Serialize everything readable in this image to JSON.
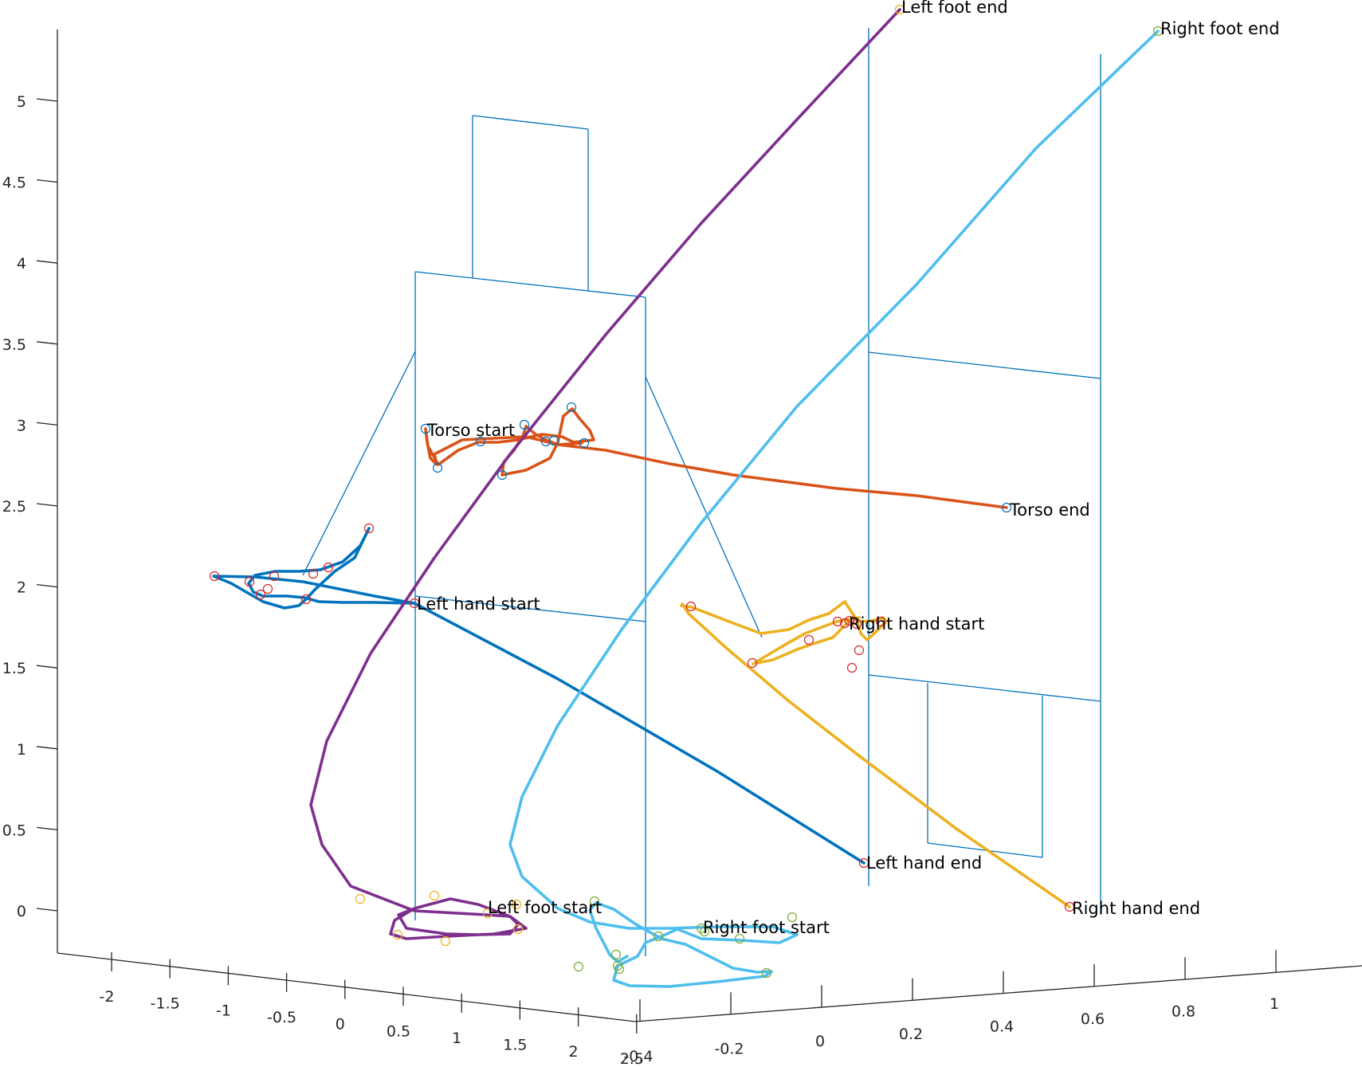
{
  "chart_data": {
    "type": "line3d",
    "title": "",
    "view": "3-D trajectory plot of body keypoints (MATLAB default view)",
    "axes": {
      "x": {
        "ticks": [
          "-2",
          "-1.5",
          "-1",
          "-0.5",
          "0",
          "0.5",
          "1",
          "1.5",
          "2",
          "2.5"
        ],
        "lim": [
          -2.3,
          2.6
        ]
      },
      "y": {
        "ticks": [
          "-0.4",
          "-0.2",
          "0",
          "0.2",
          "0.4",
          "0.6",
          "0.8",
          "1"
        ],
        "lim": [
          -0.45,
          1.05
        ]
      },
      "z": {
        "ticks": [
          "0",
          "0.5",
          "1",
          "1.5",
          "2",
          "2.5",
          "3",
          "3.5",
          "4",
          "4.5",
          "5"
        ],
        "lim": [
          -0.3,
          5.45
        ]
      }
    },
    "colors": {
      "left_hand": "#0072BD",
      "torso": "#D95319",
      "right_hand": "#EDB120",
      "left_foot": "#7E2F8E",
      "right_foot": "#4DBEEE",
      "wireframe": "#0072BD",
      "axis": "#262626"
    },
    "series": [
      {
        "name": "Left hand",
        "color": "#0072BD",
        "marker_color": "#D62728",
        "start_label": "Left hand start",
        "end_label": "Left hand end",
        "path": [
          [
            1.85,
            476
          ],
          [
            1.9,
            460
          ],
          [
            2.0,
            440
          ],
          [
            2.05,
            413
          ],
          [
            2.08,
            390
          ],
          [
            2.07,
            370
          ]
        ]
      },
      {
        "name": "Torso",
        "color": "#D95319",
        "marker_color": "#0072BD",
        "start_label": "Torso start",
        "end_label": "Torso end"
      },
      {
        "name": "Right hand",
        "color": "#EDB120",
        "marker_color": "#D62728",
        "start_label": "Right hand start",
        "end_label": "Right hand end"
      },
      {
        "name": "Left foot",
        "color": "#7E2F8E",
        "marker_color": "#EDB120",
        "start_label": "Left foot start",
        "end_label": "Left foot end"
      },
      {
        "name": "Right foot",
        "color": "#4DBEEE",
        "marker_color": "#77AC30",
        "start_label": "Right foot start",
        "end_label": "Right foot end"
      }
    ]
  }
}
